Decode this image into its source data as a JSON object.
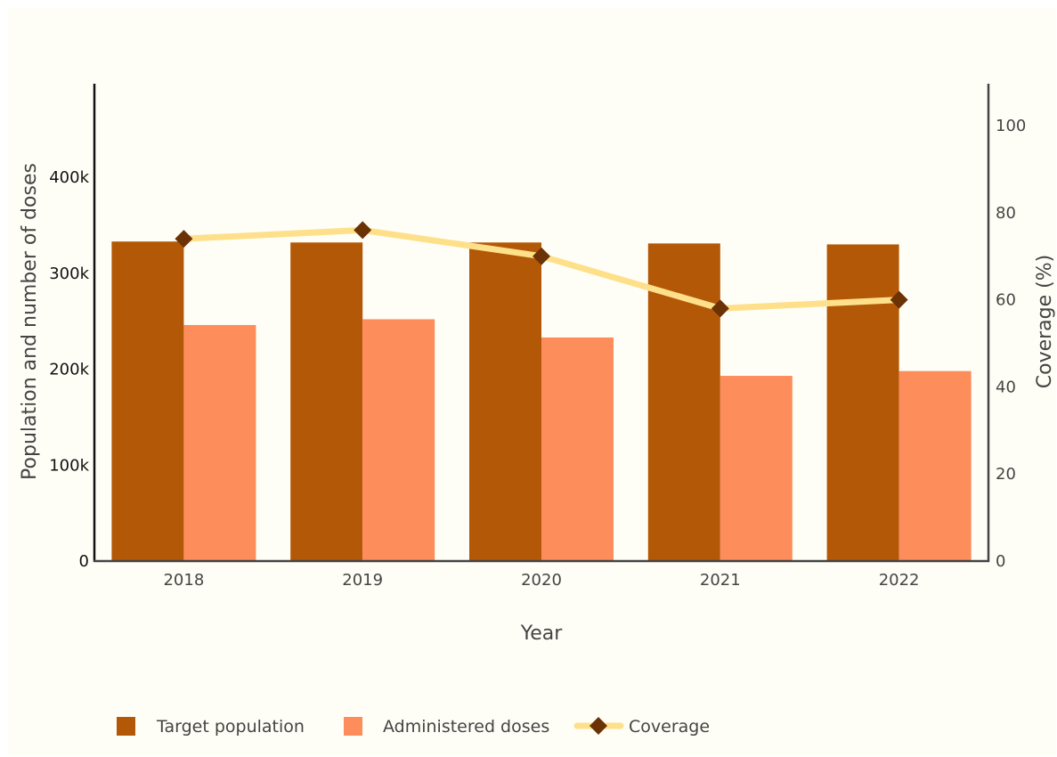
{
  "chart_data": {
    "type": "bar",
    "title": "",
    "categories": [
      "2018",
      "2019",
      "2020",
      "2021",
      "2022"
    ],
    "xlabel": "Year",
    "ylabel": "Population and number of doses",
    "y2label": "Coverage (%)",
    "ylim": [
      0,
      500000
    ],
    "y_ticks": [
      0,
      100000,
      200000,
      300000,
      400000
    ],
    "y_tick_labels": [
      "0",
      "100k",
      "200k",
      "300k",
      "400k"
    ],
    "y2lim": [
      0,
      110
    ],
    "y2_ticks": [
      0,
      20,
      40,
      60,
      80,
      100
    ],
    "y2_tick_labels": [
      "0",
      "20",
      "40",
      "60",
      "80",
      "100"
    ],
    "series": [
      {
        "name": "Target population",
        "type": "bar",
        "axis": "left",
        "color": "#b35806",
        "values": [
          333000,
          332000,
          332000,
          331000,
          330000
        ]
      },
      {
        "name": "Administered doses",
        "type": "bar",
        "axis": "left",
        "color": "#fd8d5a",
        "values": [
          246000,
          252000,
          233000,
          193000,
          198000
        ]
      },
      {
        "name": "Coverage",
        "type": "line",
        "axis": "right",
        "line_color": "#fee08b",
        "marker_color": "#6a3205",
        "marker": "diamond",
        "values": [
          74,
          76,
          70,
          58,
          60
        ]
      }
    ],
    "legend": {
      "placement": "bottom"
    },
    "grid": false,
    "background": "#fffef6"
  }
}
